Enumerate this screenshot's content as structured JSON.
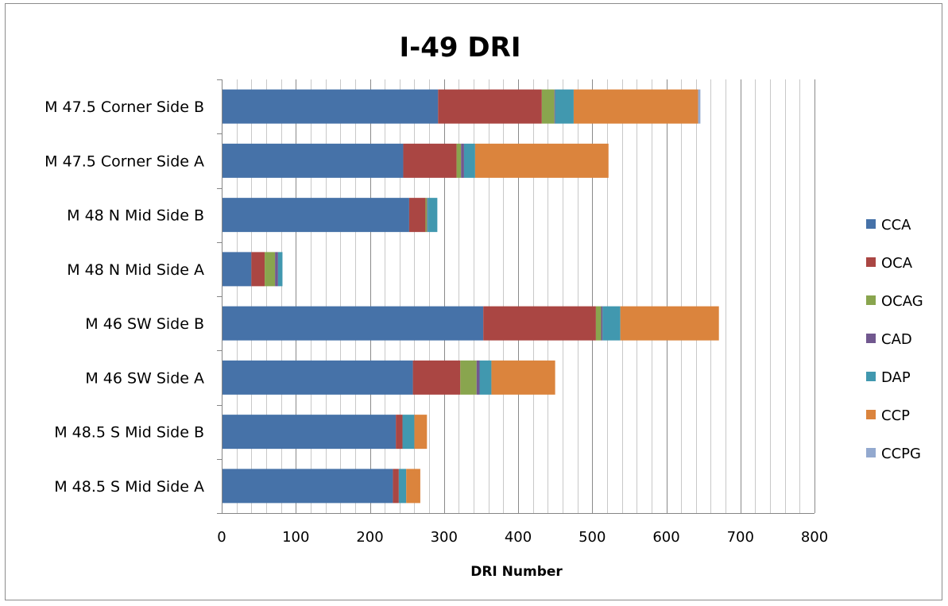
{
  "chart_data": {
    "type": "bar",
    "orientation": "horizontal",
    "stacked": true,
    "title": "I-49 DRI",
    "xlabel": "DRI Number",
    "ylabel": "",
    "xlim": [
      0,
      800
    ],
    "x_ticks": [
      "0",
      "100",
      "200",
      "300",
      "400",
      "500",
      "600",
      "700",
      "800"
    ],
    "grid": "vertical",
    "legend_position": "right",
    "categories": [
      "M 47.5 Corner Side B",
      "M 47.5 Corner Side A",
      "M 48 N Mid Side B",
      "M 48 N Mid Side A",
      "M 46 SW Side B",
      "M 46 SW Side A",
      "M 48.5 S Mid Side B",
      "M 48.5 S Mid Side A"
    ],
    "series": [
      {
        "name": "CCA",
        "color": "#4672A8",
        "values": [
          292,
          245,
          253,
          40,
          353,
          258,
          235,
          231
        ]
      },
      {
        "name": "OCA",
        "color": "#AA4643",
        "values": [
          140,
          72,
          22,
          18,
          152,
          64,
          9,
          8
        ]
      },
      {
        "name": "OCAG",
        "color": "#89A54E",
        "values": [
          17,
          6,
          2,
          14,
          7,
          22,
          0,
          0
        ]
      },
      {
        "name": "CAD",
        "color": "#71588F",
        "values": [
          1,
          4,
          1,
          4,
          2,
          4,
          0,
          0
        ]
      },
      {
        "name": "DAP",
        "color": "#4198AF",
        "values": [
          25,
          15,
          13,
          6,
          24,
          16,
          16,
          10
        ]
      },
      {
        "name": "CCP",
        "color": "#DB843D",
        "values": [
          168,
          180,
          0,
          0,
          133,
          86,
          17,
          19
        ]
      },
      {
        "name": "CCPG",
        "color": "#93A9CF",
        "values": [
          3,
          0,
          0,
          0,
          0,
          0,
          0,
          0
        ]
      }
    ]
  }
}
